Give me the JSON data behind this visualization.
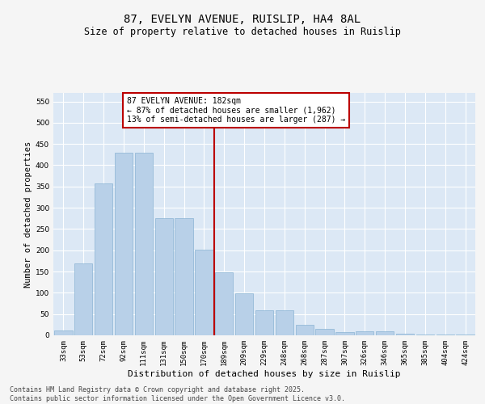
{
  "title": "87, EVELYN AVENUE, RUISLIP, HA4 8AL",
  "subtitle": "Size of property relative to detached houses in Ruislip",
  "xlabel": "Distribution of detached houses by size in Ruislip",
  "ylabel": "Number of detached properties",
  "categories": [
    "33sqm",
    "53sqm",
    "72sqm",
    "92sqm",
    "111sqm",
    "131sqm",
    "150sqm",
    "170sqm",
    "189sqm",
    "209sqm",
    "229sqm",
    "248sqm",
    "268sqm",
    "287sqm",
    "307sqm",
    "326sqm",
    "346sqm",
    "365sqm",
    "385sqm",
    "404sqm",
    "424sqm"
  ],
  "values": [
    12,
    170,
    357,
    430,
    430,
    275,
    275,
    202,
    148,
    98,
    59,
    59,
    25,
    16,
    8,
    10,
    10,
    4,
    2,
    1,
    2
  ],
  "bar_color": "#b8d0e8",
  "bar_edgecolor": "#8ab4d4",
  "vline_x_index": 8,
  "vline_color": "#bb0000",
  "annotation_text": "87 EVELYN AVENUE: 182sqm\n← 87% of detached houses are smaller (1,962)\n13% of semi-detached houses are larger (287) →",
  "annotation_box_edgecolor": "#bb0000",
  "ylim": [
    0,
    570
  ],
  "yticks": [
    0,
    50,
    100,
    150,
    200,
    250,
    300,
    350,
    400,
    450,
    500,
    550
  ],
  "background_color": "#dce8f5",
  "grid_color": "#ffffff",
  "fig_background": "#f5f5f5",
  "footer_line1": "Contains HM Land Registry data © Crown copyright and database right 2025.",
  "footer_line2": "Contains public sector information licensed under the Open Government Licence v3.0.",
  "title_fontsize": 10,
  "subtitle_fontsize": 8.5,
  "tick_fontsize": 6.5,
  "ylabel_fontsize": 7.5,
  "xlabel_fontsize": 8,
  "footer_fontsize": 6,
  "annot_fontsize": 7
}
